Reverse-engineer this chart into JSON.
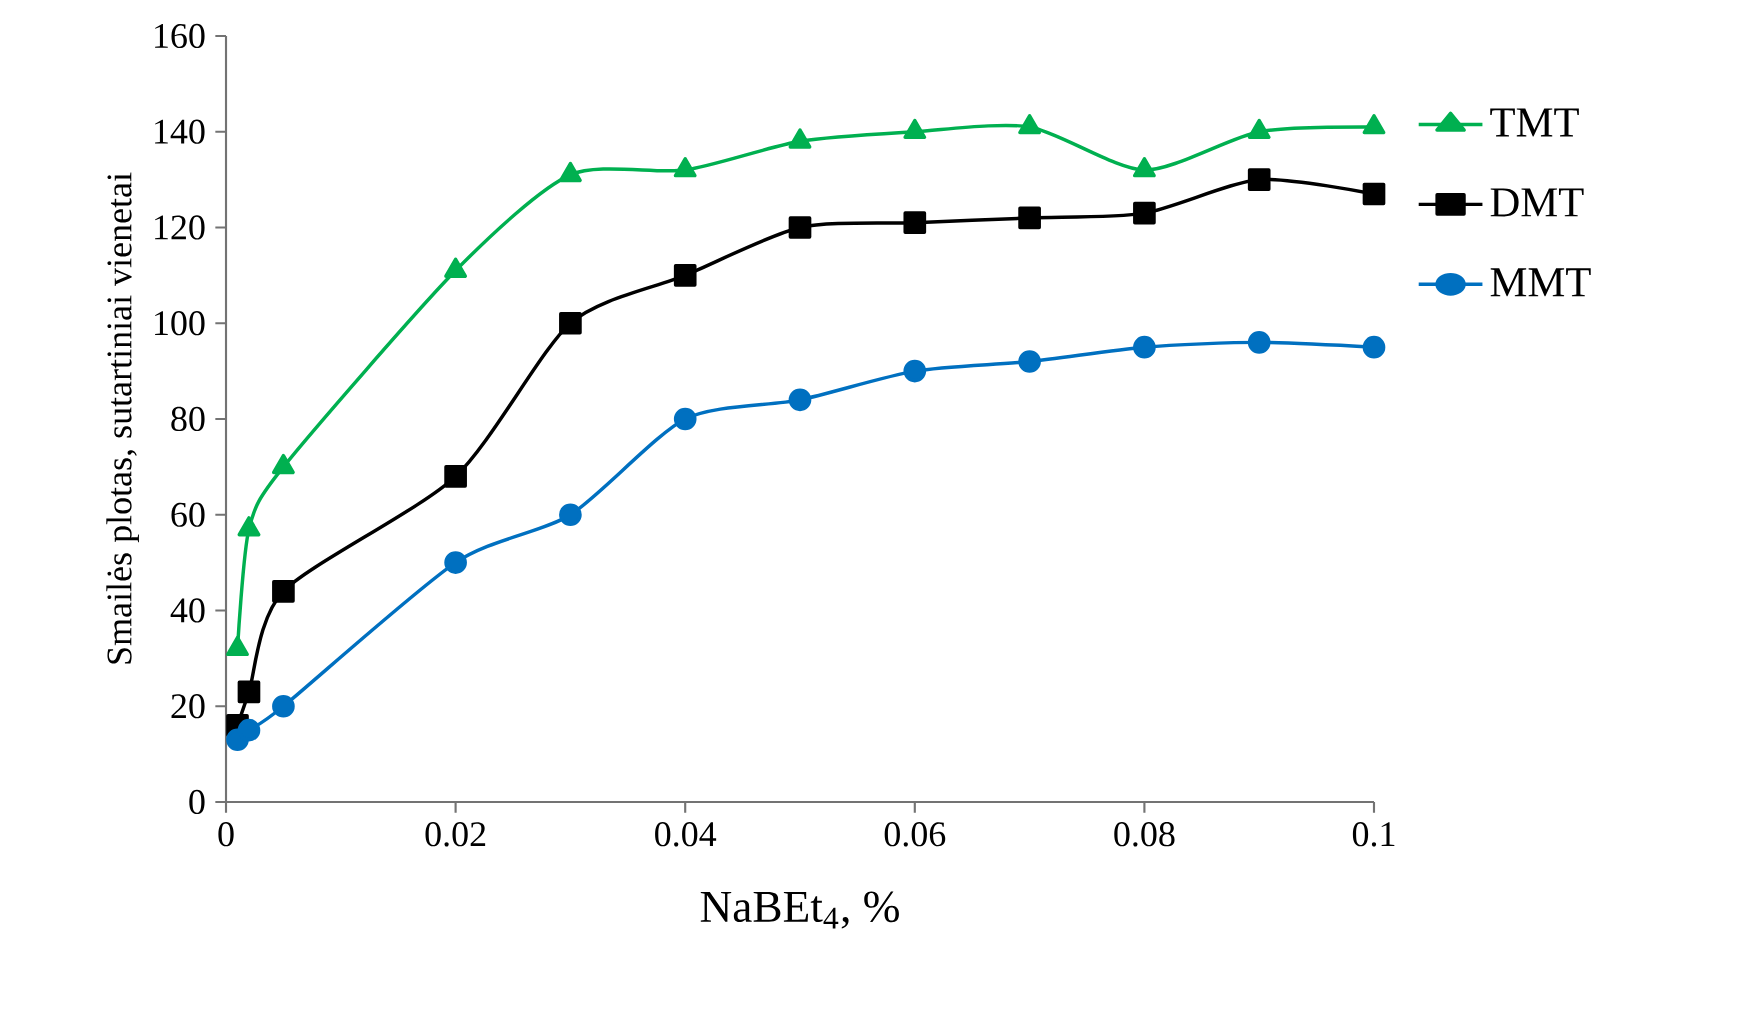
{
  "chart_data": {
    "type": "line",
    "xlabel": "NaBEt$_{4}$, %",
    "ylabel": "Smailės plotas, sutartiniai vienetai",
    "xlim": [
      0,
      0.1
    ],
    "ylim": [
      0,
      160
    ],
    "xticks": [
      0,
      0.02,
      0.04,
      0.06,
      0.08,
      0.1
    ],
    "yticks": [
      0,
      20,
      40,
      60,
      80,
      100,
      120,
      140,
      160
    ],
    "grid": false,
    "legend": "right",
    "series": [
      {
        "name": "TMT",
        "color": "#00b050",
        "marker": "triangle",
        "x": [
          0.001,
          0.002,
          0.005,
          0.02,
          0.03,
          0.04,
          0.05,
          0.06,
          0.07,
          0.08,
          0.09,
          0.1
        ],
        "values": [
          32,
          57,
          70,
          111,
          131,
          132,
          138,
          140,
          141,
          132,
          140,
          141
        ]
      },
      {
        "name": "DMT",
        "color": "#000000",
        "marker": "square",
        "x": [
          0.001,
          0.002,
          0.005,
          0.02,
          0.03,
          0.04,
          0.05,
          0.06,
          0.07,
          0.08,
          0.09,
          0.1
        ],
        "values": [
          16,
          23,
          44,
          68,
          100,
          110,
          120,
          121,
          122,
          123,
          130,
          127
        ]
      },
      {
        "name": "MMT",
        "color": "#0070c0",
        "marker": "circle",
        "x": [
          0.001,
          0.002,
          0.005,
          0.02,
          0.03,
          0.04,
          0.05,
          0.06,
          0.07,
          0.08,
          0.09,
          0.1
        ],
        "values": [
          13,
          15,
          20,
          50,
          60,
          80,
          84,
          90,
          92,
          95,
          96,
          95
        ]
      }
    ]
  }
}
